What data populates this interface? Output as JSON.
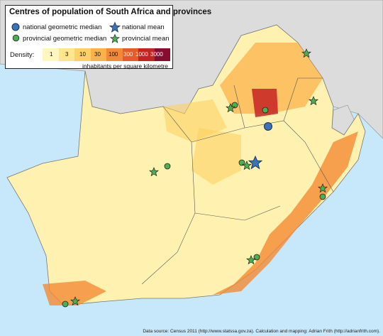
{
  "legend": {
    "title": "Centres of population of South Africa and provinces",
    "items": {
      "national_geometric_median": "national geometric median",
      "national_mean": "national mean",
      "provincial_geometric_median": "provincial geometric median",
      "provincial_mean": "provincial mean"
    },
    "density_label": "Density:",
    "density_ticks": [
      "1",
      "3",
      "10",
      "30",
      "100",
      "300",
      "1000",
      "3000"
    ],
    "units": "inhabitants per square kilometre",
    "colors": {
      "national": "#3a73b7",
      "provincial": "#4caf50",
      "scale": [
        "#fff7c2",
        "#ffe68c",
        "#fdd165",
        "#fbb24a",
        "#f48a35",
        "#e85a27",
        "#c62222",
        "#8b0a30"
      ]
    }
  },
  "source": "Data source: Census 2011 (http://www.statssa.gov.za). Calculation and mapping: Adrian Frith (http://adrianfrith.com).",
  "map_colors": {
    "sea": "#c7e8fb",
    "neighbours": "#dcdcdc",
    "land": "#fff2b0"
  }
}
